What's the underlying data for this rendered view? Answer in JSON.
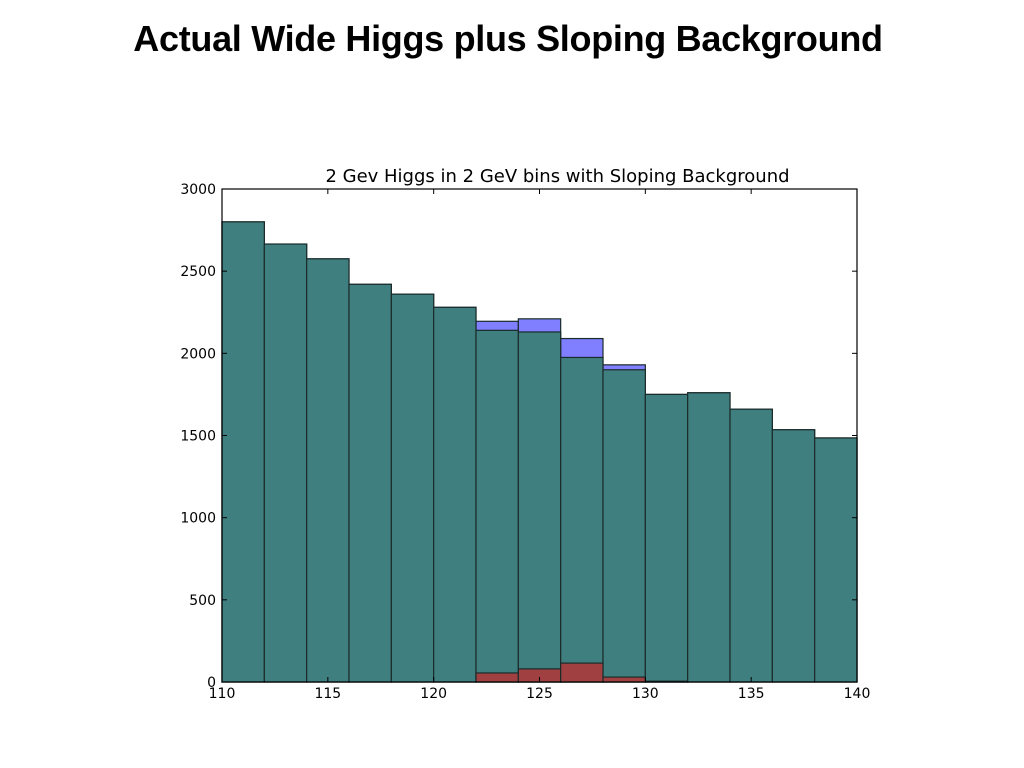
{
  "slide": {
    "title": "Actual Wide Higgs plus Sloping Background"
  },
  "colors": {
    "background_bar": "#407f7f",
    "signal_plus_background_bar": "#7f7fff",
    "signal_bar": "#a04040",
    "bar_edge": "#1a2b2b"
  },
  "chart_data": {
    "type": "bar",
    "title": "2 Gev Higgs in 2 GeV bins with Sloping Background",
    "xlabel": "",
    "ylabel": "",
    "xlim": [
      110,
      140
    ],
    "ylim": [
      0,
      3000
    ],
    "bin_width": 2,
    "x_ticks": [
      110,
      115,
      120,
      125,
      130,
      135,
      140
    ],
    "y_ticks": [
      0,
      500,
      1000,
      1500,
      2000,
      2500,
      3000
    ],
    "bin_edges_left": [
      110,
      112,
      114,
      116,
      118,
      120,
      122,
      124,
      126,
      128,
      130,
      132,
      134,
      136,
      138
    ],
    "series": [
      {
        "color": "#7f7fff",
        "values": [
          2800,
          2665,
          2575,
          2420,
          2360,
          2280,
          2195,
          2210,
          2090,
          1930,
          1750,
          1760,
          1660,
          1535,
          1485
        ]
      },
      {
        "color": "#407f7f",
        "values": [
          2800,
          2665,
          2575,
          2420,
          2360,
          2280,
          2140,
          2130,
          1975,
          1900,
          1750,
          1760,
          1660,
          1535,
          1485
        ]
      },
      {
        "color": "#a04040",
        "values": [
          0,
          0,
          0,
          0,
          0,
          0,
          55,
          80,
          115,
          30,
          5,
          0,
          0,
          0,
          0
        ]
      }
    ],
    "grid": false,
    "legend": "none"
  }
}
